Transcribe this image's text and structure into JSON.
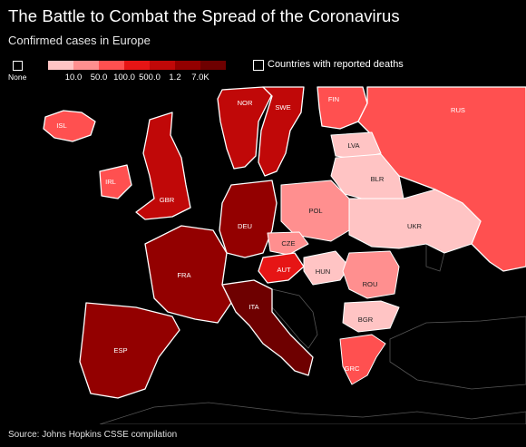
{
  "header": {
    "title": "The Battle to Combat the Spread of the Coronavirus",
    "subtitle": "Confirmed cases in Europe"
  },
  "legend": {
    "none_label": "None",
    "ticks": [
      "10.0",
      "50.0",
      "100.0",
      "500.0",
      "1.2",
      "7.0K"
    ],
    "colors": [
      "#ffc4c4",
      "#ff8f8f",
      "#ff5050",
      "#e61515",
      "#c00808",
      "#930000",
      "#6e0000"
    ],
    "deaths_label": "Countries with reported deaths"
  },
  "map": {
    "countries": [
      {
        "code": "ISL",
        "label": "ISL",
        "level": 2
      },
      {
        "code": "NOR",
        "label": "NOR",
        "level": 4
      },
      {
        "code": "SWE",
        "label": "SWE",
        "level": 4
      },
      {
        "code": "FIN",
        "label": "FIN",
        "level": 2
      },
      {
        "code": "RUS",
        "label": "RUS",
        "level": 2
      },
      {
        "code": "LVA",
        "label": "LVA",
        "level": 0
      },
      {
        "code": "BLR",
        "label": "BLR",
        "level": 0
      },
      {
        "code": "IRL",
        "label": "IRL",
        "level": 2
      },
      {
        "code": "GBR",
        "label": "GBR",
        "level": 4
      },
      {
        "code": "DEU",
        "label": "DEU",
        "level": 5
      },
      {
        "code": "POL",
        "label": "POL",
        "level": 1
      },
      {
        "code": "UKR",
        "label": "UKR",
        "level": 0
      },
      {
        "code": "CZE",
        "label": "CZE",
        "level": 1
      },
      {
        "code": "AUT",
        "label": "AUT",
        "level": 3
      },
      {
        "code": "FRA",
        "label": "FRA",
        "level": 5
      },
      {
        "code": "HUN",
        "label": "HUN",
        "level": 0
      },
      {
        "code": "ROU",
        "label": "ROU",
        "level": 1
      },
      {
        "code": "ITA",
        "label": "ITA",
        "level": 6
      },
      {
        "code": "BGR",
        "label": "BGR",
        "level": 0
      },
      {
        "code": "ESP",
        "label": "ESP",
        "level": 5
      },
      {
        "code": "GRC",
        "label": "GRC",
        "level": 2
      }
    ]
  },
  "footer": {
    "source": "Source: Johns Hopkins CSSE compilation"
  }
}
